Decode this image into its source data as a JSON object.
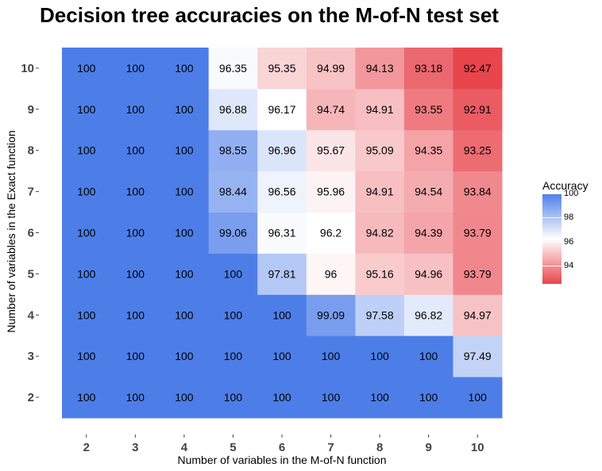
{
  "chart_data": {
    "type": "heatmap",
    "title": "Decision tree accuracies on the M-of-N test set",
    "xlabel": "Number of variables in the M-of-N function",
    "ylabel": "Number of variables in the Exact function",
    "x_categories": [
      "2",
      "3",
      "4",
      "5",
      "6",
      "7",
      "8",
      "9",
      "10"
    ],
    "y_categories": [
      "2",
      "3",
      "4",
      "5",
      "6",
      "7",
      "8",
      "9",
      "10"
    ],
    "values": [
      [
        "100",
        "100",
        "100",
        "100",
        "100",
        "100",
        "100",
        "100",
        "100"
      ],
      [
        "100",
        "100",
        "100",
        "100",
        "100",
        "100",
        "100",
        "100",
        "97.49"
      ],
      [
        "100",
        "100",
        "100",
        "100",
        "100",
        "99.09",
        "97.58",
        "96.82",
        "94.97"
      ],
      [
        "100",
        "100",
        "100",
        "100",
        "97.81",
        "96",
        "95.16",
        "94.96",
        "93.79"
      ],
      [
        "100",
        "100",
        "100",
        "99.06",
        "96.31",
        "96.2",
        "94.82",
        "94.39",
        "93.79"
      ],
      [
        "100",
        "100",
        "100",
        "98.44",
        "96.56",
        "95.96",
        "94.91",
        "94.54",
        "93.84"
      ],
      [
        "100",
        "100",
        "100",
        "98.55",
        "96.96",
        "95.67",
        "95.09",
        "94.35",
        "93.25"
      ],
      [
        "100",
        "100",
        "100",
        "96.88",
        "96.17",
        "94.74",
        "94.91",
        "93.55",
        "92.91"
      ],
      [
        "100",
        "100",
        "100",
        "96.35",
        "95.35",
        "94.99",
        "94.13",
        "93.18",
        "92.47"
      ]
    ],
    "color_scale": {
      "low": "#e8454d",
      "mid": "#ffffff",
      "high": "#4d7ee8",
      "min": 92.47,
      "mid_value": 96.2,
      "max": 100
    },
    "legend": {
      "title": "Accuracy",
      "ticks": [
        "100",
        "98",
        "96",
        "94"
      ],
      "placement": "right"
    }
  }
}
